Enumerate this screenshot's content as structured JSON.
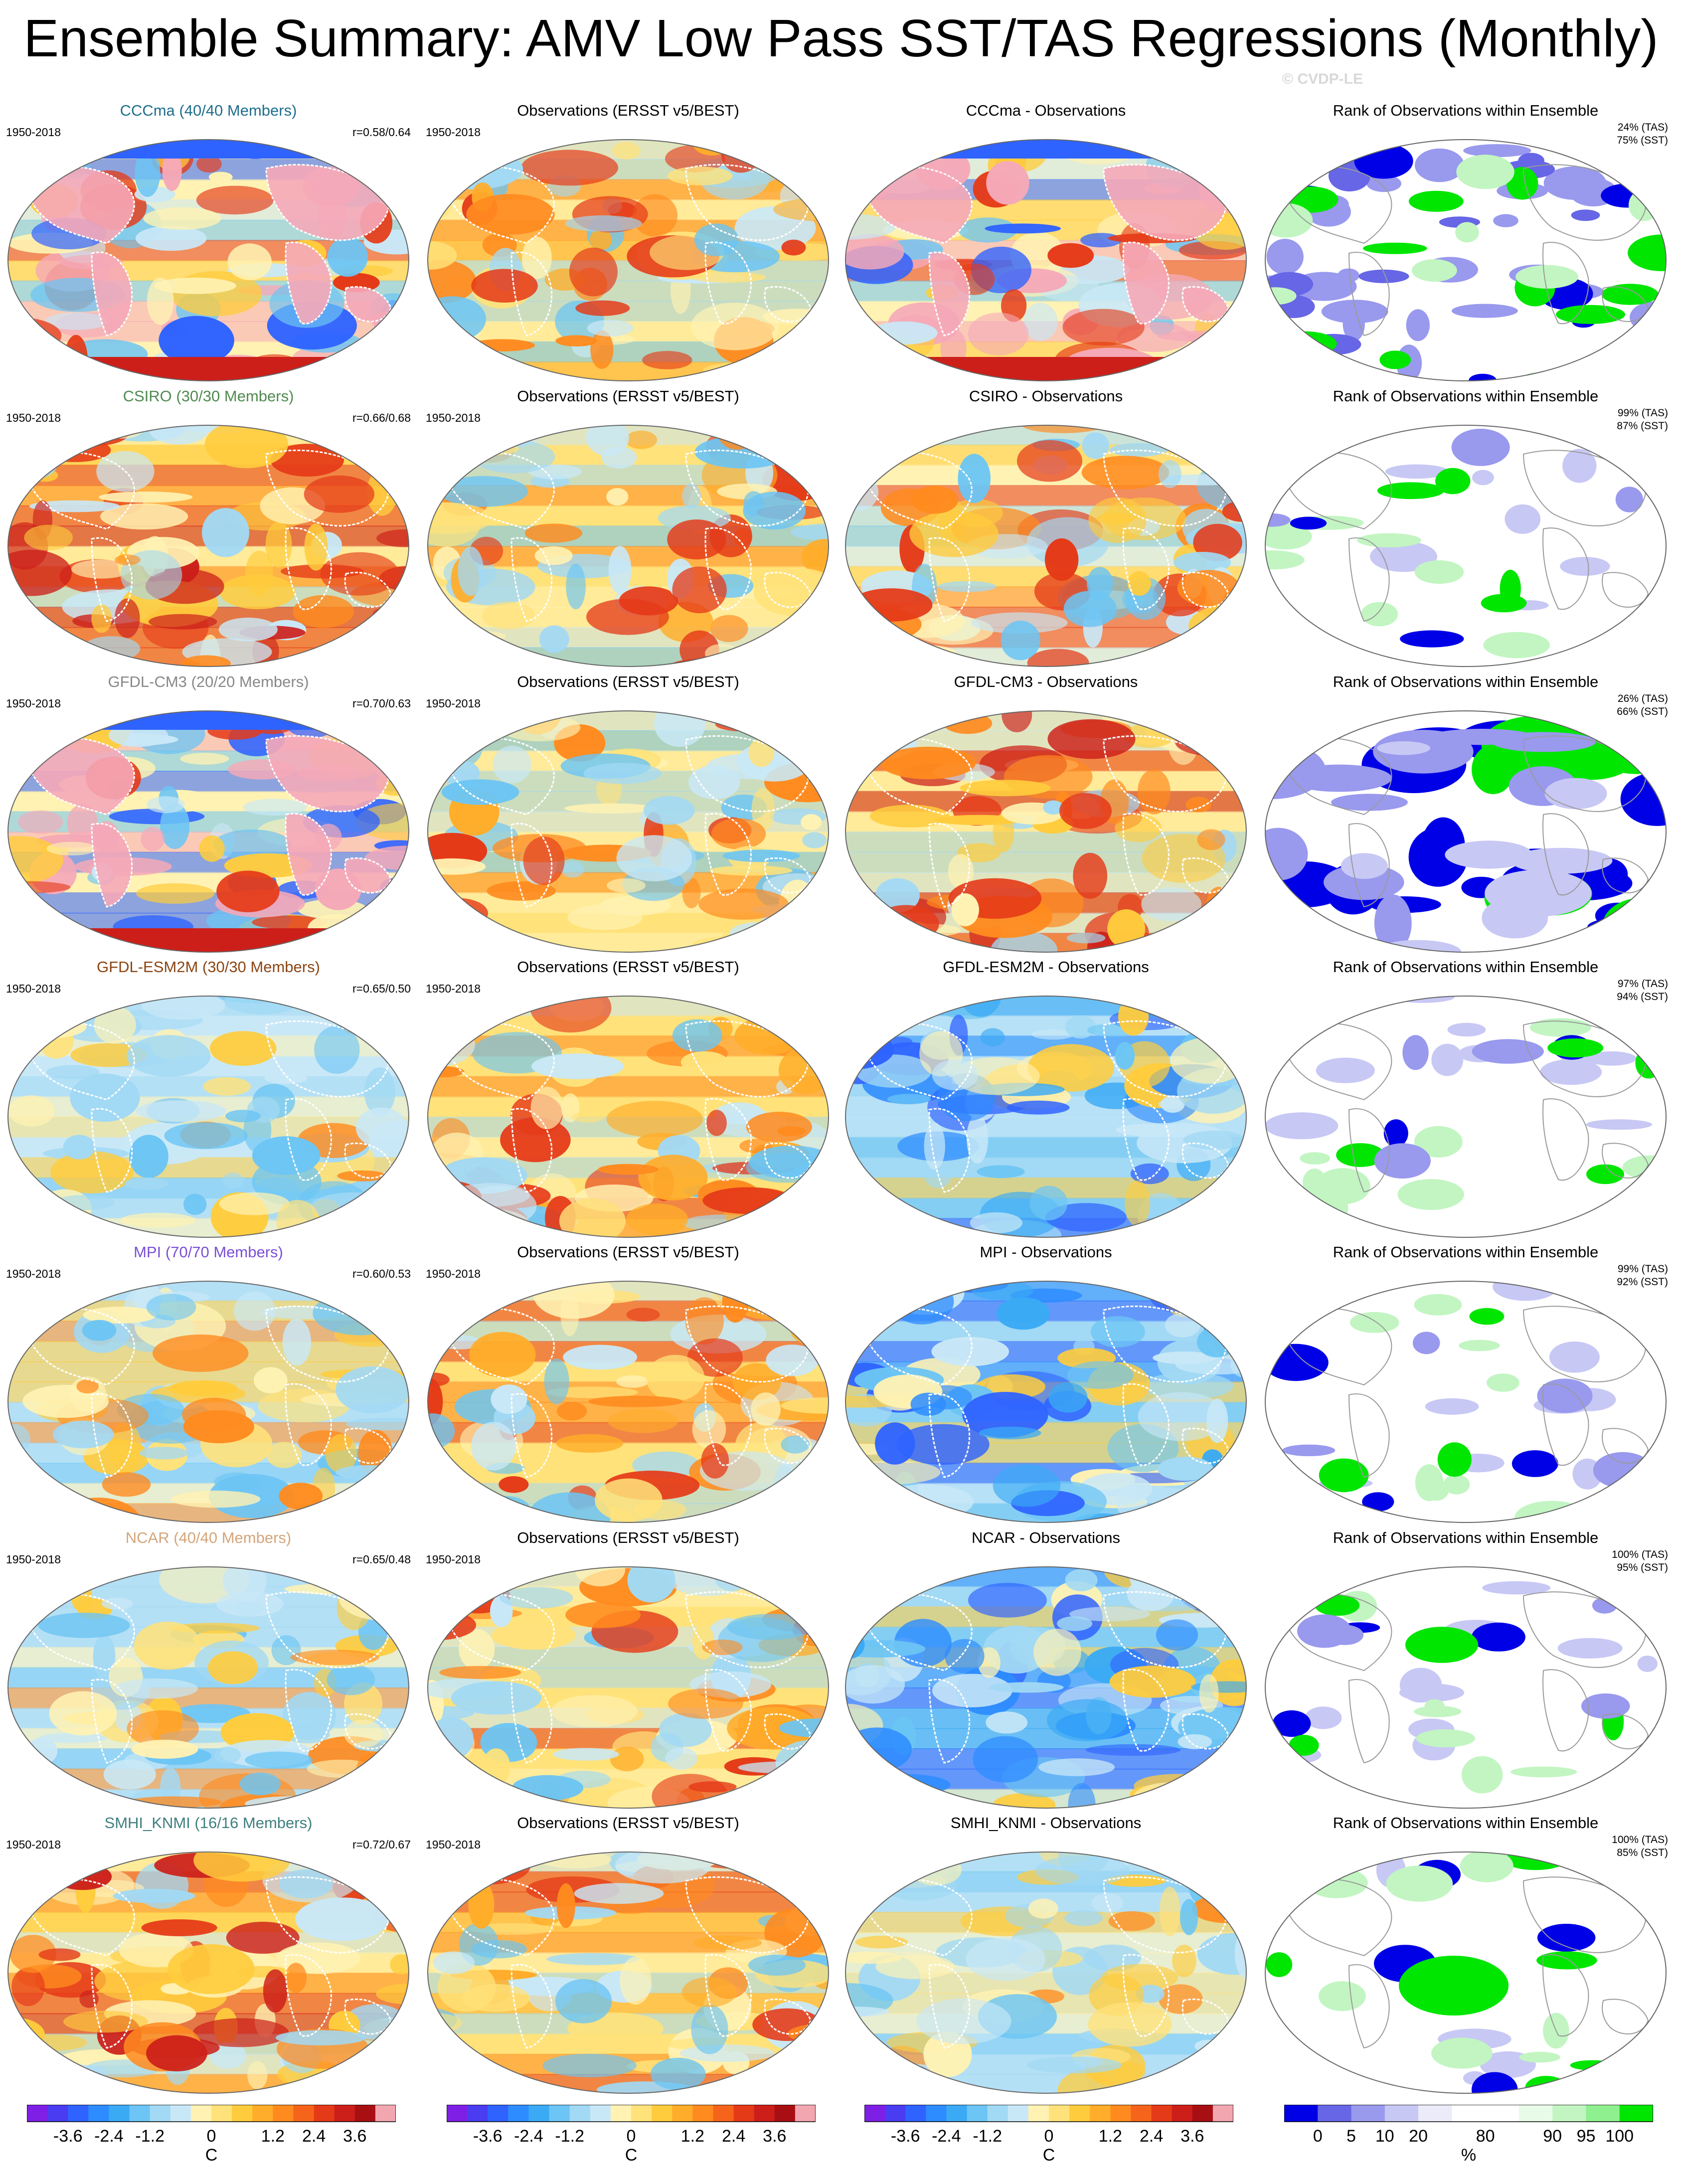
{
  "title": "Ensemble Summary: AMV Low Pass SST/TAS Regressions (Monthly)",
  "watermark": "© CVDP-LE",
  "colors": {
    "CCCma": "#1f6e8c",
    "CSIRO": "#4f8a4f",
    "GFDL-CM3": "#888888",
    "GFDL-ESM2M": "#8b4513",
    "MPI": "#7a4fd6",
    "NCAR": "#d4a57a",
    "SMHI_KNMI": "#3f7f7f",
    "default": "#000000",
    "map_outline": "#9a9a9a"
  },
  "rows": [
    {
      "model": "CCCma",
      "model_title": "CCCma (40/40 Members)",
      "period": "1950-2018",
      "corr": "r=0.58/0.64",
      "obs_title": "Observations (ERSST v5/BEST)",
      "diff_title": "CCCma - Observations",
      "rank_title": "Rank of Observations within Ensemble",
      "rank_tas": "24% (TAS)",
      "rank_sst": "75% (SST)",
      "tone": {
        "model": "extreme",
        "obs": "obs",
        "diff": "extreme",
        "rank": "mixed-blue"
      }
    },
    {
      "model": "CSIRO",
      "model_title": "CSIRO (30/30 Members)",
      "period": "1950-2018",
      "corr": "r=0.66/0.68",
      "obs_title": "Observations (ERSST v5/BEST)",
      "diff_title": "CSIRO - Observations",
      "rank_title": "Rank of Observations within Ensemble",
      "rank_tas": "99% (TAS)",
      "rank_sst": "87% (SST)",
      "tone": {
        "model": "hot",
        "obs": "obs",
        "diff": "warm",
        "rank": "sparse"
      }
    },
    {
      "model": "GFDL-CM3",
      "model_title": "GFDL-CM3 (20/20 Members)",
      "period": "1950-2018",
      "corr": "r=0.70/0.63",
      "obs_title": "Observations (ERSST v5/BEST)",
      "diff_title": "GFDL-CM3 - Observations",
      "rank_title": "Rank of Observations within Ensemble",
      "rank_tas": "26% (TAS)",
      "rank_sst": "66% (SST)",
      "tone": {
        "model": "extreme",
        "obs": "obs",
        "diff": "hot",
        "rank": "strong-blue"
      }
    },
    {
      "model": "GFDL-ESM2M",
      "model_title": "GFDL-ESM2M (30/30 Members)",
      "period": "1950-2018",
      "corr": "r=0.65/0.50",
      "obs_title": "Observations (ERSST v5/BEST)",
      "diff_title": "GFDL-ESM2M - Observations",
      "rank_title": "Rank of Observations within Ensemble",
      "rank_tas": "97% (TAS)",
      "rank_sst": "94% (SST)",
      "tone": {
        "model": "mild",
        "obs": "obs",
        "diff": "cool",
        "rank": "sparse"
      }
    },
    {
      "model": "MPI",
      "model_title": "MPI (70/70 Members)",
      "period": "1950-2018",
      "corr": "r=0.60/0.53",
      "obs_title": "Observations (ERSST v5/BEST)",
      "diff_title": "MPI - Observations",
      "rank_title": "Rank of Observations within Ensemble",
      "rank_tas": "99% (TAS)",
      "rank_sst": "92% (SST)",
      "tone": {
        "model": "mild",
        "obs": "obs",
        "diff": "cool",
        "rank": "sparse"
      }
    },
    {
      "model": "NCAR",
      "model_title": "NCAR (40/40 Members)",
      "period": "1950-2018",
      "corr": "r=0.65/0.48",
      "obs_title": "Observations (ERSST v5/BEST)",
      "diff_title": "NCAR - Observations",
      "rank_title": "Rank of Observations within Ensemble",
      "rank_tas": "100% (TAS)",
      "rank_sst": "95% (SST)",
      "tone": {
        "model": "mild",
        "obs": "obs",
        "diff": "cool",
        "rank": "sparse"
      }
    },
    {
      "model": "SMHI_KNMI",
      "model_title": "SMHI_KNMI (16/16 Members)",
      "period": "1950-2018",
      "corr": "r=0.72/0.67",
      "obs_title": "Observations (ERSST v5/BEST)",
      "diff_title": "SMHI_KNMI - Observations",
      "rank_title": "Rank of Observations within Ensemble",
      "rank_tas": "100% (TAS)",
      "rank_sst": "85% (SST)",
      "tone": {
        "model": "hot",
        "obs": "obs",
        "diff": "mild",
        "rank": "green-blob"
      }
    }
  ],
  "temp_colorbar": {
    "ticks": [
      "-3.6",
      "-2.4",
      "-1.2",
      "0",
      "1.2",
      "2.4",
      "3.6"
    ],
    "unit": "C",
    "colors": [
      "#7e1fe6",
      "#4a3cf0",
      "#2f63ff",
      "#2d8cff",
      "#3aaaf5",
      "#6cc5f4",
      "#a2d9f4",
      "#c9e8f7",
      "#fff2b3",
      "#ffe27a",
      "#ffcc3d",
      "#ffad2a",
      "#ff8b1f",
      "#f5641a",
      "#e53a18",
      "#cc1f1a",
      "#a80f12",
      "#f2a6b0"
    ]
  },
  "rank_colorbar": {
    "ticks": [
      "0",
      "5",
      "10",
      "20",
      "80",
      "90",
      "95",
      "100"
    ],
    "unit": "%",
    "colors": [
      "#0000e6",
      "#6666e6",
      "#9999ee",
      "#c8c8f5",
      "#ebebfa",
      "#ffffff",
      "#ffffff",
      "#e8fbe8",
      "#c2f5c2",
      "#8ef08e",
      "#00e600"
    ]
  }
}
